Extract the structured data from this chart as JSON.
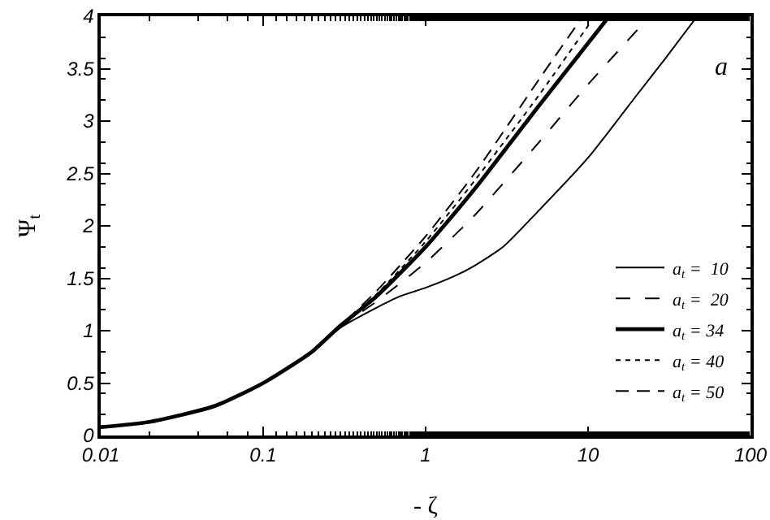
{
  "chart_data": {
    "type": "line",
    "xlabel": "- ζ",
    "ylabel": "Ψ$_{t}$",
    "annotations": [
      "a"
    ],
    "log": "x",
    "xlim": [
      0.01,
      100
    ],
    "ylim": [
      0,
      4
    ],
    "xticks": [
      0.01,
      0.1,
      1,
      10,
      100
    ],
    "yticks": [
      0,
      0.5,
      1,
      1.5,
      2,
      2.5,
      3,
      3.5,
      4
    ],
    "grid": false,
    "legend": "bottom right",
    "marker": "none",
    "series": [
      {
        "name": "a$_{t}$ =  10",
        "color": "#000000",
        "line_style": "solid",
        "x": [
          0.01,
          0.02,
          0.05,
          0.1,
          0.2,
          0.3,
          0.5,
          0.7,
          1,
          1.5,
          2,
          3,
          5,
          10,
          20,
          30,
          47
        ],
        "values": [
          0.08,
          0.13,
          0.28,
          0.5,
          0.8,
          1.03,
          1.22,
          1.33,
          1.41,
          1.52,
          1.62,
          1.8,
          2.15,
          2.65,
          3.25,
          3.6,
          4
        ]
      },
      {
        "name": "a$_{t}$ =  20",
        "color": "#000000",
        "line_style": "dashed",
        "x": [
          0.01,
          0.02,
          0.05,
          0.1,
          0.2,
          0.3,
          0.5,
          1,
          2,
          5,
          10,
          24
        ],
        "values": [
          0.08,
          0.13,
          0.28,
          0.5,
          0.8,
          1.04,
          1.28,
          1.65,
          2.1,
          2.8,
          3.35,
          4
        ]
      },
      {
        "name": "a$_{t}$ = 34",
        "color": "#000000",
        "line_style": "solid",
        "x": [
          0.01,
          0.02,
          0.05,
          0.1,
          0.2,
          0.3,
          0.5,
          1,
          2,
          5,
          13.5
        ],
        "values": [
          0.08,
          0.13,
          0.28,
          0.5,
          0.8,
          1.05,
          1.33,
          1.8,
          2.35,
          3.15,
          4
        ]
      },
      {
        "name": "a$_{t}$ = 40",
        "color": "#000000",
        "line_style": "dotted",
        "x": [
          0.01,
          0.02,
          0.05,
          0.1,
          0.2,
          0.3,
          0.5,
          1,
          2,
          5,
          11
        ],
        "values": [
          0.08,
          0.13,
          0.28,
          0.5,
          0.8,
          1.05,
          1.35,
          1.85,
          2.43,
          3.25,
          4
        ]
      },
      {
        "name": "a$_{t}$ = 50",
        "color": "#000000",
        "line_style": "dashed",
        "x": [
          0.01,
          0.02,
          0.05,
          0.1,
          0.2,
          0.3,
          0.5,
          1,
          2,
          5,
          9.3
        ],
        "values": [
          0.08,
          0.13,
          0.28,
          0.5,
          0.8,
          1.05,
          1.38,
          1.9,
          2.5,
          3.4,
          4
        ]
      }
    ]
  }
}
